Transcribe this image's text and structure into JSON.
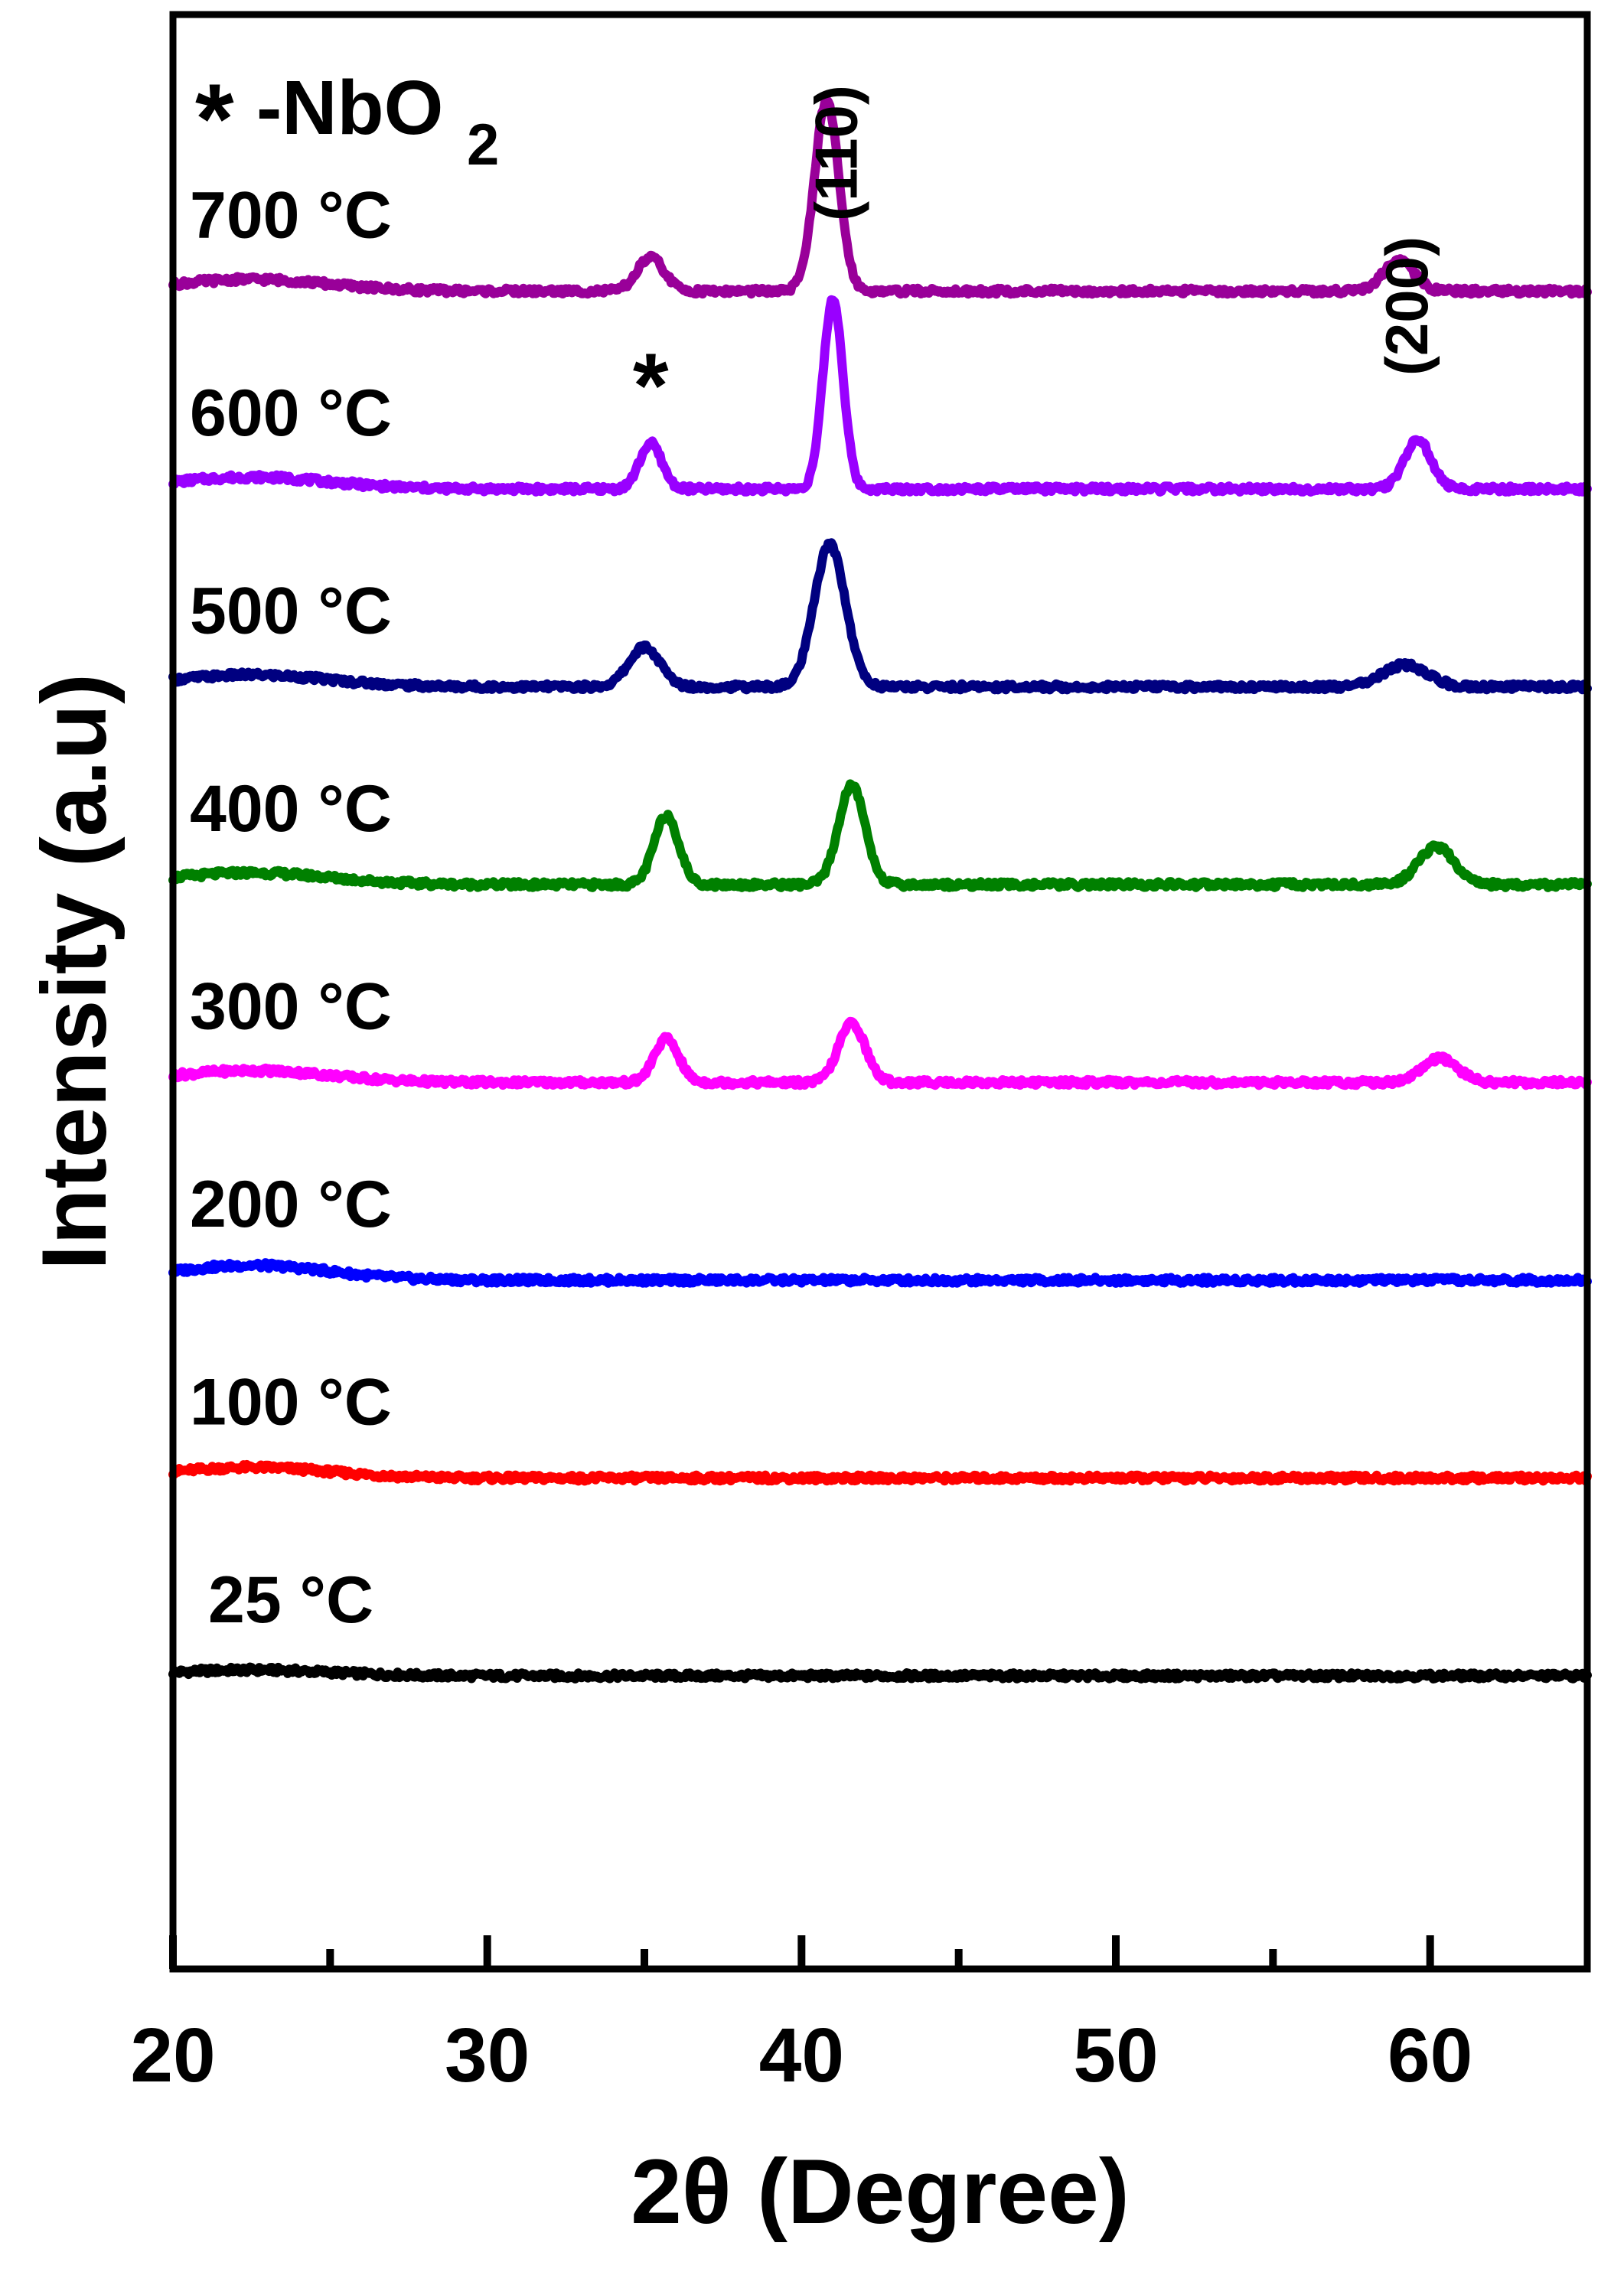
{
  "chart_data": {
    "type": "line",
    "title": "",
    "xlabel": "2θ (Degree)",
    "ylabel": "Intensity (a.u)",
    "xlim": [
      20,
      65
    ],
    "x_ticks": [
      20,
      30,
      40,
      50,
      60
    ],
    "x_tick_labels": [
      "20",
      "30",
      "40",
      "50",
      "60"
    ],
    "x_minor_ticks": [
      25,
      35,
      45,
      55
    ],
    "y_ticks": false,
    "grid": false,
    "legend_text": "-NbO",
    "legend_subscript": "2",
    "legend_star": "*",
    "peak_labels": [
      {
        "text": "(110)",
        "x": 40.9
      },
      {
        "text": "(200)",
        "x": 59.3
      }
    ],
    "star_marker": {
      "text": "*",
      "x": 35.2
    },
    "series": [
      {
        "name": "25 °C",
        "color": "#000000",
        "baseline": 0.0,
        "peaks": [],
        "hump": 0.01
      },
      {
        "name": "100 °C",
        "color": "#ff0000",
        "baseline": 1.0,
        "peaks": [],
        "hump": 0.018
      },
      {
        "name": "200 °C",
        "color": "#0000ff",
        "baseline": 2.0,
        "peaks": [],
        "hump": 0.025
      },
      {
        "name": "300 °C",
        "color": "#ff00ff",
        "baseline": 3.0,
        "peaks": [
          {
            "center": 35.7,
            "height": 0.22,
            "width": 0.55
          },
          {
            "center": 41.6,
            "height": 0.3,
            "width": 0.6
          },
          {
            "center": 60.3,
            "height": 0.12,
            "width": 0.8
          }
        ],
        "hump": 0.02
      },
      {
        "name": "400 °C",
        "color": "#008000",
        "baseline": 4.0,
        "peaks": [
          {
            "center": 35.7,
            "height": 0.35,
            "width": 0.55
          },
          {
            "center": 41.6,
            "height": 0.5,
            "width": 0.6
          },
          {
            "center": 60.2,
            "height": 0.19,
            "width": 0.8
          }
        ],
        "hump": 0.02
      },
      {
        "name": "500 °C",
        "color": "#000080",
        "baseline": 5.0,
        "peaks": [
          {
            "center": 35.0,
            "height": 0.2,
            "width": 0.7
          },
          {
            "center": 40.9,
            "height": 0.72,
            "width": 0.7
          },
          {
            "center": 59.2,
            "height": 0.11,
            "width": 1.0
          }
        ],
        "hump": 0.02
      },
      {
        "name": "600 °C",
        "color": "#9900ff",
        "baseline": 6.0,
        "peaks": [
          {
            "center": 35.2,
            "height": 0.23,
            "width": 0.5
          },
          {
            "center": 41.0,
            "height": 0.96,
            "width": 0.45
          },
          {
            "center": 59.6,
            "height": 0.25,
            "width": 0.6
          }
        ],
        "hump": 0.02
      },
      {
        "name": "700 °C",
        "color": "#990099",
        "baseline": 7.0,
        "peaks": [
          {
            "center": 35.2,
            "height": 0.17,
            "width": 0.6
          },
          {
            "center": 40.8,
            "height": 0.96,
            "width": 0.55
          },
          {
            "center": 59.0,
            "height": 0.15,
            "width": 0.7
          }
        ],
        "hump": 0.02
      }
    ]
  }
}
